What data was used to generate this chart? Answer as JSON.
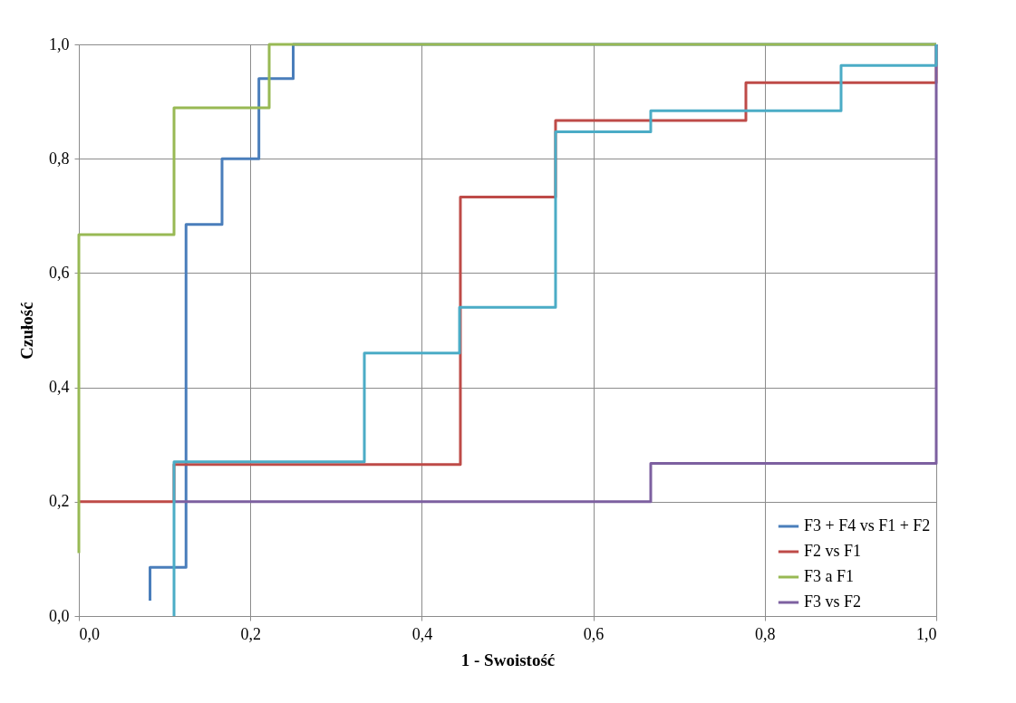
{
  "chart_data": {
    "type": "line",
    "xlabel": "1 - Swoistość",
    "ylabel": "Czułość",
    "xlim": [
      0,
      1
    ],
    "ylim": [
      0,
      1
    ],
    "xticks": [
      {
        "value": 0,
        "label": "0,0"
      },
      {
        "value": 0.2,
        "label": "0,2"
      },
      {
        "value": 0.4,
        "label": "0,4"
      },
      {
        "value": 0.6,
        "label": "0,6"
      },
      {
        "value": 0.8,
        "label": "0,8"
      },
      {
        "value": 1,
        "label": "1,0"
      }
    ],
    "yticks": [
      {
        "value": 0,
        "label": "0,0"
      },
      {
        "value": 0.2,
        "label": "0,2"
      },
      {
        "value": 0.4,
        "label": "0,4"
      },
      {
        "value": 0.6,
        "label": "0,6"
      },
      {
        "value": 0.8,
        "label": "0,8"
      },
      {
        "value": 1,
        "label": "1,0"
      }
    ],
    "grid": true,
    "legend": "bottom right",
    "series": [
      {
        "name": "F3 + F4 vs F1 + F2",
        "color": "#4a7ebb",
        "x": [
          0.083,
          0.083,
          0.125,
          0.125,
          0.167,
          0.167,
          0.21,
          0.21,
          0.25,
          0.25,
          1.0
        ],
        "values": [
          0.027,
          0.085,
          0.085,
          0.685,
          0.685,
          0.8,
          0.8,
          0.94,
          0.94,
          1.0,
          1.0
        ]
      },
      {
        "name": "F2 vs F1",
        "color": "#be4b48",
        "x": [
          0,
          0.111,
          0.111,
          0.445,
          0.445,
          0.556,
          0.556,
          0.778,
          0.778,
          1.0,
          1.0
        ],
        "values": [
          0.2,
          0.2,
          0.265,
          0.265,
          0.733,
          0.733,
          0.867,
          0.867,
          0.933,
          0.933,
          1.0
        ]
      },
      {
        "name": "F3 a F1",
        "color": "#98b954",
        "x": [
          0,
          0,
          0.111,
          0.111,
          0.222,
          0.222,
          1.0
        ],
        "values": [
          0.11,
          0.667,
          0.667,
          0.889,
          0.889,
          1.0,
          1.0
        ]
      },
      {
        "name": "F3 vs F2",
        "color": "#7d60a0",
        "x": [
          0.111,
          0.667,
          0.667,
          1.0,
          1.0
        ],
        "values": [
          0.2,
          0.2,
          0.267,
          0.267,
          1.0
        ]
      },
      {
        "color": "#4bacc6",
        "x": [
          0.111,
          0.111,
          0.333,
          0.333,
          0.444,
          0.444,
          0.556,
          0.556,
          0.667,
          0.667,
          0.889,
          0.889,
          1.0,
          1.0
        ],
        "values": [
          0,
          0.27,
          0.27,
          0.46,
          0.46,
          0.54,
          0.54,
          0.847,
          0.847,
          0.884,
          0.884,
          0.963,
          0.963,
          1.0
        ]
      }
    ]
  }
}
